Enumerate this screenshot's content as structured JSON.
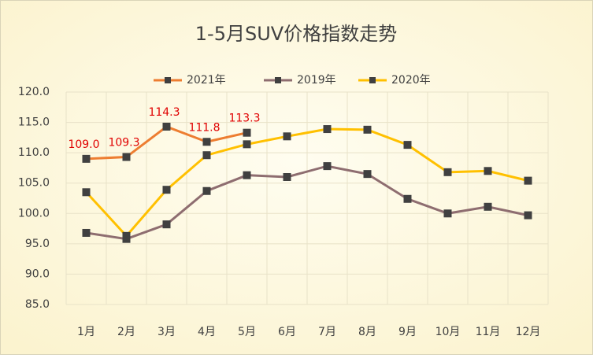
{
  "chart_data": {
    "type": "line",
    "title": "1-5月SUV价格指数走势",
    "categories": [
      "1月",
      "2月",
      "3月",
      "4月",
      "5月",
      "6月",
      "7月",
      "8月",
      "9月",
      "10月",
      "11月",
      "12月"
    ],
    "series": [
      {
        "name": "2021年",
        "color": "#ED7D31",
        "values": [
          109.0,
          109.3,
          114.3,
          111.8,
          113.3,
          null,
          null,
          null,
          null,
          null,
          null,
          null
        ],
        "value_labels": [
          "109.0",
          "109.3",
          "114.3",
          "111.8",
          "113.3",
          null,
          null,
          null,
          null,
          null,
          null,
          null
        ]
      },
      {
        "name": "2019年",
        "color": "#8E6D70",
        "values": [
          96.8,
          95.8,
          98.2,
          103.7,
          106.3,
          106.0,
          107.8,
          106.5,
          102.4,
          100.0,
          101.1,
          99.7
        ]
      },
      {
        "name": "2020年",
        "color": "#FFC000",
        "values": [
          103.5,
          96.3,
          103.9,
          109.6,
          111.4,
          112.7,
          113.9,
          113.8,
          111.3,
          106.8,
          107.0,
          105.4
        ]
      }
    ],
    "ylim": [
      85,
      120
    ],
    "yticks": [
      {
        "value": 85,
        "label": "85.0"
      },
      {
        "value": 90,
        "label": "90.0"
      },
      {
        "value": 95,
        "label": "95.0"
      },
      {
        "value": 100,
        "label": "100.0"
      },
      {
        "value": 105,
        "label": "105.0"
      },
      {
        "value": 110,
        "label": "110.0"
      },
      {
        "value": 115,
        "label": "115.0"
      },
      {
        "value": 120,
        "label": "120.0"
      }
    ],
    "grid": true,
    "legend": "top",
    "marker_color": "#404040",
    "label_color": "#E00000"
  }
}
